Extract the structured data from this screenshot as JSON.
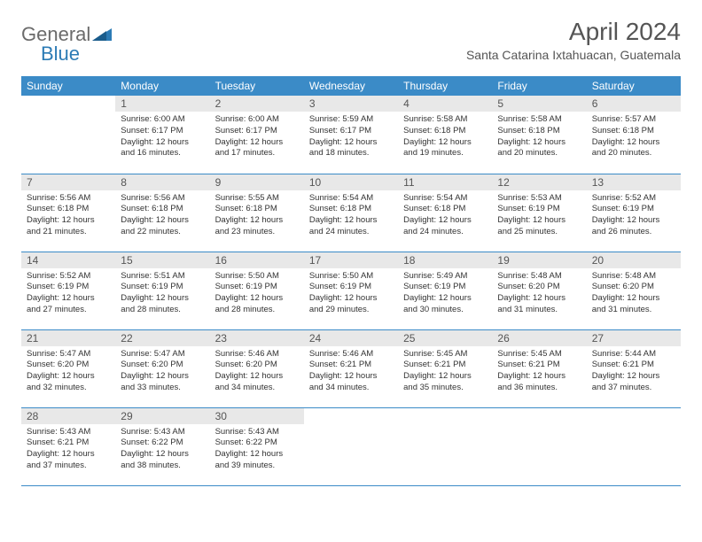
{
  "logo": {
    "text1": "General",
    "text2": "Blue"
  },
  "title": "April 2024",
  "subtitle": "Santa Catarina Ixtahuacan, Guatemala",
  "colors": {
    "header_bg": "#3b8bc7",
    "header_text": "#ffffff",
    "daynum_bg": "#e8e8e8",
    "body_text": "#333333",
    "rule": "#3b8bc7"
  },
  "weekdays": [
    "Sunday",
    "Monday",
    "Tuesday",
    "Wednesday",
    "Thursday",
    "Friday",
    "Saturday"
  ],
  "weeks": [
    [
      {
        "empty": true
      },
      {
        "n": "1",
        "sunrise": "6:00 AM",
        "sunset": "6:17 PM",
        "daylight": "12 hours and 16 minutes."
      },
      {
        "n": "2",
        "sunrise": "6:00 AM",
        "sunset": "6:17 PM",
        "daylight": "12 hours and 17 minutes."
      },
      {
        "n": "3",
        "sunrise": "5:59 AM",
        "sunset": "6:17 PM",
        "daylight": "12 hours and 18 minutes."
      },
      {
        "n": "4",
        "sunrise": "5:58 AM",
        "sunset": "6:18 PM",
        "daylight": "12 hours and 19 minutes."
      },
      {
        "n": "5",
        "sunrise": "5:58 AM",
        "sunset": "6:18 PM",
        "daylight": "12 hours and 20 minutes."
      },
      {
        "n": "6",
        "sunrise": "5:57 AM",
        "sunset": "6:18 PM",
        "daylight": "12 hours and 20 minutes."
      }
    ],
    [
      {
        "n": "7",
        "sunrise": "5:56 AM",
        "sunset": "6:18 PM",
        "daylight": "12 hours and 21 minutes."
      },
      {
        "n": "8",
        "sunrise": "5:56 AM",
        "sunset": "6:18 PM",
        "daylight": "12 hours and 22 minutes."
      },
      {
        "n": "9",
        "sunrise": "5:55 AM",
        "sunset": "6:18 PM",
        "daylight": "12 hours and 23 minutes."
      },
      {
        "n": "10",
        "sunrise": "5:54 AM",
        "sunset": "6:18 PM",
        "daylight": "12 hours and 24 minutes."
      },
      {
        "n": "11",
        "sunrise": "5:54 AM",
        "sunset": "6:18 PM",
        "daylight": "12 hours and 24 minutes."
      },
      {
        "n": "12",
        "sunrise": "5:53 AM",
        "sunset": "6:19 PM",
        "daylight": "12 hours and 25 minutes."
      },
      {
        "n": "13",
        "sunrise": "5:52 AM",
        "sunset": "6:19 PM",
        "daylight": "12 hours and 26 minutes."
      }
    ],
    [
      {
        "n": "14",
        "sunrise": "5:52 AM",
        "sunset": "6:19 PM",
        "daylight": "12 hours and 27 minutes."
      },
      {
        "n": "15",
        "sunrise": "5:51 AM",
        "sunset": "6:19 PM",
        "daylight": "12 hours and 28 minutes."
      },
      {
        "n": "16",
        "sunrise": "5:50 AM",
        "sunset": "6:19 PM",
        "daylight": "12 hours and 28 minutes."
      },
      {
        "n": "17",
        "sunrise": "5:50 AM",
        "sunset": "6:19 PM",
        "daylight": "12 hours and 29 minutes."
      },
      {
        "n": "18",
        "sunrise": "5:49 AM",
        "sunset": "6:19 PM",
        "daylight": "12 hours and 30 minutes."
      },
      {
        "n": "19",
        "sunrise": "5:48 AM",
        "sunset": "6:20 PM",
        "daylight": "12 hours and 31 minutes."
      },
      {
        "n": "20",
        "sunrise": "5:48 AM",
        "sunset": "6:20 PM",
        "daylight": "12 hours and 31 minutes."
      }
    ],
    [
      {
        "n": "21",
        "sunrise": "5:47 AM",
        "sunset": "6:20 PM",
        "daylight": "12 hours and 32 minutes."
      },
      {
        "n": "22",
        "sunrise": "5:47 AM",
        "sunset": "6:20 PM",
        "daylight": "12 hours and 33 minutes."
      },
      {
        "n": "23",
        "sunrise": "5:46 AM",
        "sunset": "6:20 PM",
        "daylight": "12 hours and 34 minutes."
      },
      {
        "n": "24",
        "sunrise": "5:46 AM",
        "sunset": "6:21 PM",
        "daylight": "12 hours and 34 minutes."
      },
      {
        "n": "25",
        "sunrise": "5:45 AM",
        "sunset": "6:21 PM",
        "daylight": "12 hours and 35 minutes."
      },
      {
        "n": "26",
        "sunrise": "5:45 AM",
        "sunset": "6:21 PM",
        "daylight": "12 hours and 36 minutes."
      },
      {
        "n": "27",
        "sunrise": "5:44 AM",
        "sunset": "6:21 PM",
        "daylight": "12 hours and 37 minutes."
      }
    ],
    [
      {
        "n": "28",
        "sunrise": "5:43 AM",
        "sunset": "6:21 PM",
        "daylight": "12 hours and 37 minutes."
      },
      {
        "n": "29",
        "sunrise": "5:43 AM",
        "sunset": "6:22 PM",
        "daylight": "12 hours and 38 minutes."
      },
      {
        "n": "30",
        "sunrise": "5:43 AM",
        "sunset": "6:22 PM",
        "daylight": "12 hours and 39 minutes."
      },
      {
        "empty": true
      },
      {
        "empty": true
      },
      {
        "empty": true
      },
      {
        "empty": true
      }
    ]
  ],
  "labels": {
    "sunrise": "Sunrise:",
    "sunset": "Sunset:",
    "daylight": "Daylight:"
  }
}
